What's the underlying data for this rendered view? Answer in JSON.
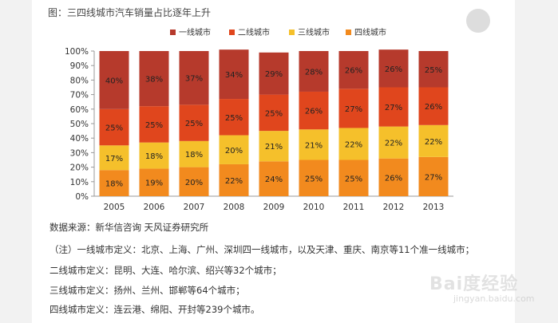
{
  "figure_title": "图：三四线城市汽车销量占比逐年上升",
  "chart_data": {
    "type": "bar",
    "stacked": true,
    "categories": [
      "2005",
      "2006",
      "2007",
      "2008",
      "2009",
      "2010",
      "2011",
      "2012",
      "2013"
    ],
    "series": [
      {
        "name": "四线城市",
        "color": "#F28A1E",
        "values": [
          18,
          19,
          20,
          22,
          24,
          25,
          25,
          26,
          27
        ]
      },
      {
        "name": "三线城市",
        "color": "#F5C02B",
        "values": [
          17,
          18,
          18,
          20,
          21,
          21,
          22,
          22,
          22
        ]
      },
      {
        "name": "二线城市",
        "color": "#E0461D",
        "values": [
          25,
          25,
          25,
          25,
          25,
          26,
          27,
          27,
          26
        ]
      },
      {
        "name": "一线城市",
        "color": "#B63A2C",
        "values": [
          40,
          38,
          37,
          34,
          29,
          28,
          26,
          26,
          25
        ]
      }
    ],
    "legend_order": [
      "一线城市",
      "二线城市",
      "三线城市",
      "四线城市"
    ],
    "y_ticks": [
      "0%",
      "10%",
      "20%",
      "30%",
      "40%",
      "50%",
      "60%",
      "70%",
      "80%",
      "90%",
      "100%"
    ],
    "ylim": [
      0,
      100
    ],
    "value_suffix": "%",
    "legend_position": "top",
    "grid": false
  },
  "source": "数据来源：新华信咨询 天风证券研究所",
  "notes": [
    "（注）一线城市定义：北京、上海、广州、深圳四一线城市，以及天津、重庆、南京等11个准一线城市；",
    "二线城市定义：昆明、大连、哈尔滨、绍兴等32个城市；",
    "三线城市定义：扬州、兰州、邯郸等64个城市；",
    "四线城市定义：连云港、绵阳、开封等239个城市。"
  ],
  "watermark": {
    "main": "Bai度经验",
    "sub": "jingyan.baidu.com"
  }
}
